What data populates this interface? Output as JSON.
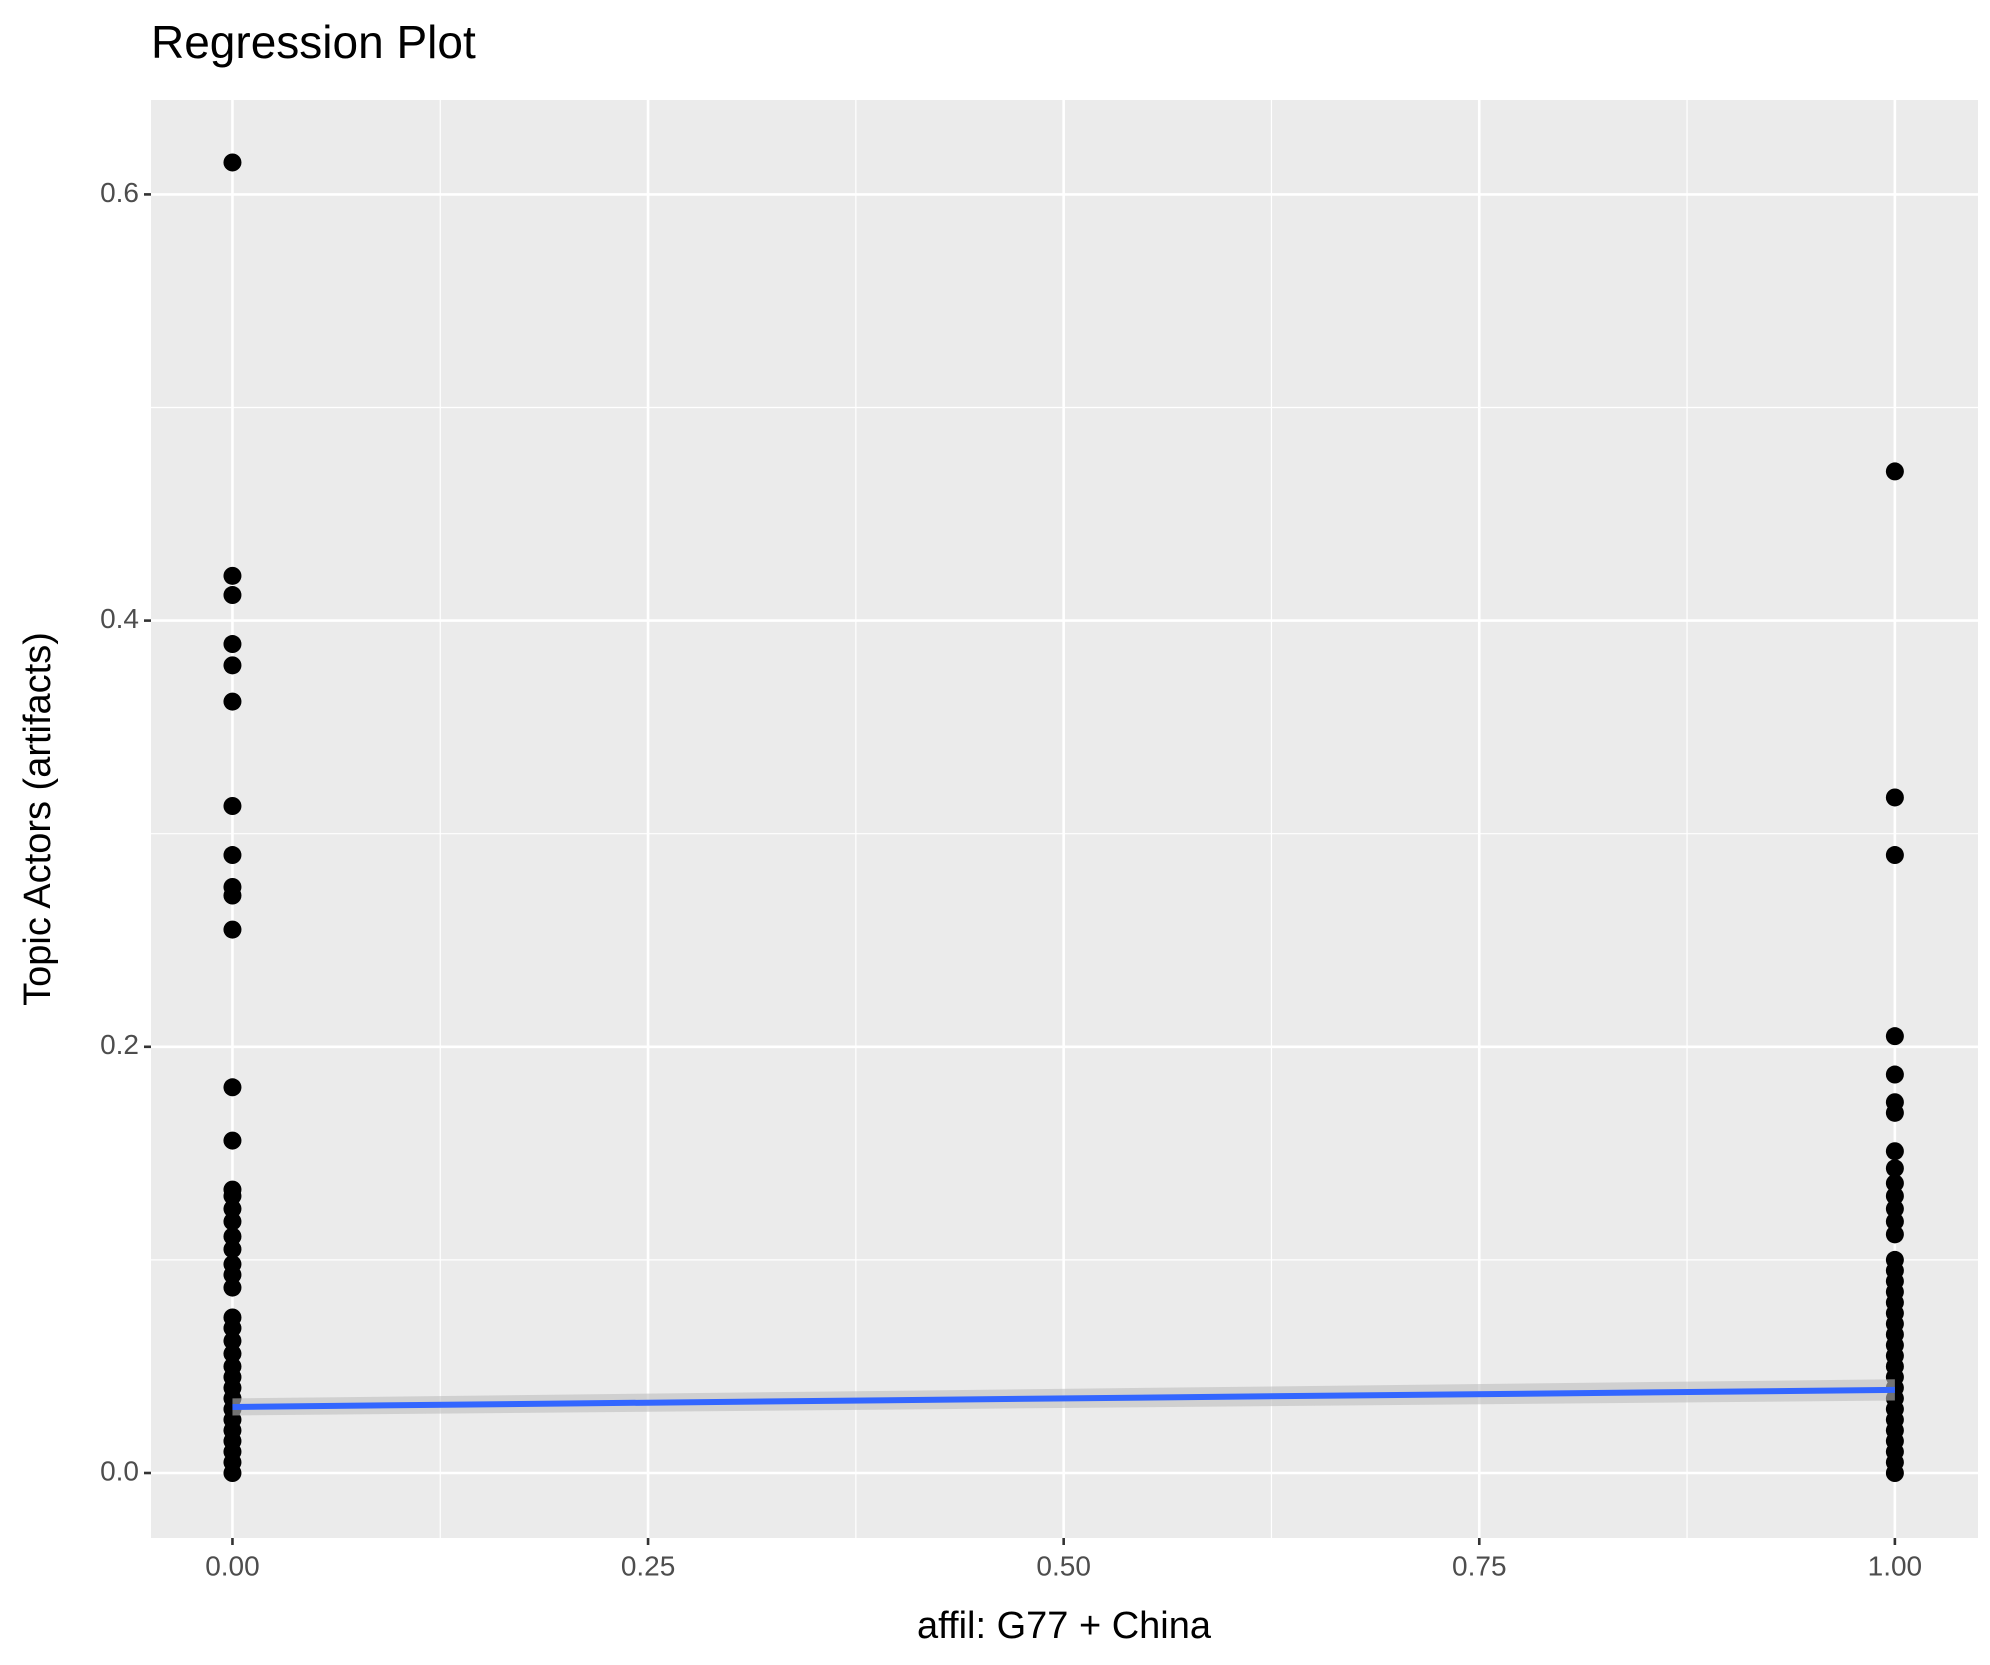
{
  "chart_data": {
    "type": "scatter",
    "title": "Regression Plot",
    "x_label": "affil: G77 + China",
    "y_label": "Topic Actors (artifacts)",
    "xlim": [
      -0.049,
      1.05
    ],
    "ylim": [
      -0.0305,
      0.6443
    ],
    "xticks": [
      {
        "value": 0,
        "label": "0.00"
      },
      0.25,
      {
        "value": 0.5,
        "label": "0.50"
      },
      0.75,
      {
        "value": 1,
        "label": "1.00"
      }
    ],
    "yticks": [
      {
        "value": 0,
        "label": "0.0"
      },
      0.2,
      0.4,
      0.6
    ],
    "x_minor_grid": [
      0.125,
      0.375,
      0.625,
      0.875
    ],
    "y_minor_grid": [
      0.1,
      0.3,
      0.5
    ],
    "grid": true,
    "series": [
      {
        "color": "#000000",
        "x": [
          0,
          0,
          0,
          0,
          0,
          0,
          0,
          0,
          0,
          0,
          0,
          0,
          0,
          0,
          0,
          0,
          0,
          0,
          0,
          0,
          0,
          0,
          0,
          0,
          0,
          0,
          0,
          0,
          0,
          0,
          0,
          0,
          0,
          0,
          0,
          0,
          0
        ],
        "values": [
          0.615,
          0.421,
          0.412,
          0.389,
          0.379,
          0.362,
          0.313,
          0.29,
          0.275,
          0.271,
          0.255,
          0.181,
          0.156,
          0.133,
          0.13,
          0.124,
          0.118,
          0.111,
          0.105,
          0.098,
          0.093,
          0.087,
          0.073,
          0.068,
          0.062,
          0.056,
          0.05,
          0.045,
          0.04,
          0.035,
          0.03,
          0.025,
          0.02,
          0.015,
          0.01,
          0.005,
          0
        ]
      },
      {
        "color": "#000000",
        "x": [
          1,
          1,
          1,
          1,
          1,
          1,
          1,
          1,
          1,
          1,
          1,
          1,
          1,
          1,
          1,
          1,
          1,
          1,
          1,
          1,
          1,
          1,
          1,
          1,
          1,
          1,
          1,
          1,
          1,
          1,
          1,
          1,
          1,
          1,
          1
        ],
        "values": [
          0.47,
          0.317,
          0.29,
          0.205,
          0.187,
          0.174,
          0.169,
          0.151,
          0.143,
          0.136,
          0.13,
          0.124,
          0.118,
          0.112,
          0.1,
          0.095,
          0.09,
          0.085,
          0.08,
          0.075,
          0.07,
          0.065,
          0.06,
          0.055,
          0.05,
          0.045,
          0.04,
          0.035,
          0.03,
          0.025,
          0.02,
          0.015,
          0.01,
          0.005,
          0
        ]
      }
    ],
    "regression": {
      "color": "#3366FF",
      "band_color": "#BEBEBE",
      "x": [
        0,
        1
      ],
      "values": [
        0.031,
        0.039
      ],
      "lower": [
        0.027,
        0.034
      ],
      "upper": [
        0.035,
        0.044
      ]
    }
  }
}
